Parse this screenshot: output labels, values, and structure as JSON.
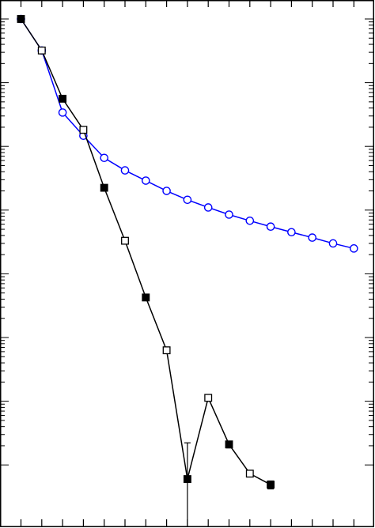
{
  "chart_data": {
    "type": "line",
    "title": "",
    "xlabel": "",
    "ylabel": "",
    "xlim": [
      0,
      17
    ],
    "ylim_log10": [
      -7.35,
      0.2
    ],
    "log_scale_y": true,
    "grid": false,
    "legend": "none",
    "series": [
      {
        "color": "#000000",
        "marker": "square-alternating-filled-open",
        "x": [
          0,
          1,
          2,
          3,
          4,
          5,
          6,
          7,
          8,
          9,
          10,
          11,
          12
        ],
        "y": [
          1.0,
          0.32,
          0.056,
          0.0182,
          0.00224,
          0.00033,
          4.25e-05,
          6.3e-06,
          6e-08,
          1.13e-06,
          2.1e-07,
          7.3e-08,
          4.9e-08
        ],
        "y_err": [
          null,
          null,
          null,
          null,
          null,
          null,
          null,
          null,
          1.62e-07,
          null,
          2.5e-08,
          null,
          7e-09
        ]
      },
      {
        "color": "#0000ff",
        "marker": "circle-open",
        "x": [
          0,
          1,
          2,
          3,
          4,
          5,
          6,
          7,
          8,
          9,
          10,
          11,
          12,
          13,
          14,
          15,
          16
        ],
        "y": [
          1.0,
          0.32,
          0.034,
          0.0147,
          0.0066,
          0.0042,
          0.0029,
          0.002,
          0.00145,
          0.0011,
          0.00085,
          0.00068,
          0.00055,
          0.00045,
          0.00037,
          0.0003,
          0.00025
        ]
      }
    ]
  }
}
